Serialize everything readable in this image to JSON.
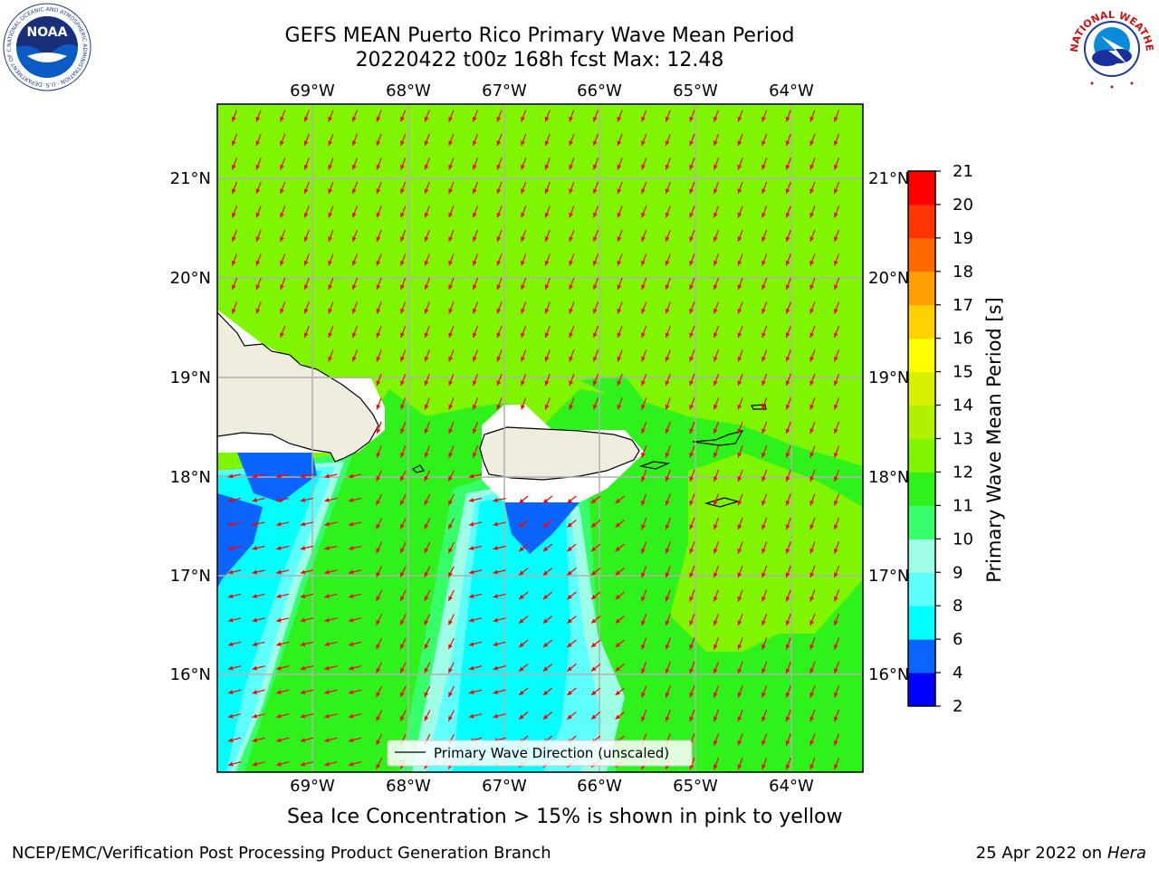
{
  "title": {
    "line1": "GEFS MEAN Puerto Rico Primary Wave Mean Period",
    "line2": "20220422 t00z 168h fcst   Max: 12.48"
  },
  "axes": {
    "lon_labels": [
      "69°W",
      "68°W",
      "67°W",
      "66°W",
      "65°W",
      "64°W"
    ],
    "lat_labels": [
      "21°N",
      "20°N",
      "19°N",
      "18°N",
      "17°N",
      "16°N"
    ]
  },
  "colorbar": {
    "label": "Primary Wave Mean Period [s]",
    "ticks": [
      "2",
      "4",
      "6",
      "8",
      "9",
      "10",
      "11",
      "12",
      "13",
      "14",
      "15",
      "16",
      "17",
      "18",
      "19",
      "20",
      "21"
    ],
    "colors": [
      "#0000ff",
      "#0a64ff",
      "#00ffff",
      "#5effff",
      "#9effe6",
      "#36ff6a",
      "#2ff21d",
      "#7ff500",
      "#b0f000",
      "#d7f000",
      "#ffff00",
      "#ffd200",
      "#ffa000",
      "#ff6a00",
      "#ff3500",
      "#ff0000"
    ]
  },
  "legend": {
    "label": "Primary Wave Direction (unscaled)"
  },
  "caption": "Sea Ice Concentration > 15% is shown in pink to yellow",
  "footer": {
    "left": "NCEP/EMC/Verification Post Processing Product Generation Branch",
    "date": "25 Apr 2022 on ",
    "machine": "Hera"
  },
  "logos": {
    "left": "NOAA",
    "left_ring": "NATIONAL OCEANIC AND ATMOSPHERIC ADMINISTRATION · U.S. DEPARTMENT OF COMMERCE",
    "right_ring": "NATIONAL WEATHER SERVICE"
  },
  "map_colors": {
    "land": "#efeddd",
    "nodata": "#ffffff",
    "arrow": "#ff0000",
    "grid": "#b0b0b0"
  }
}
